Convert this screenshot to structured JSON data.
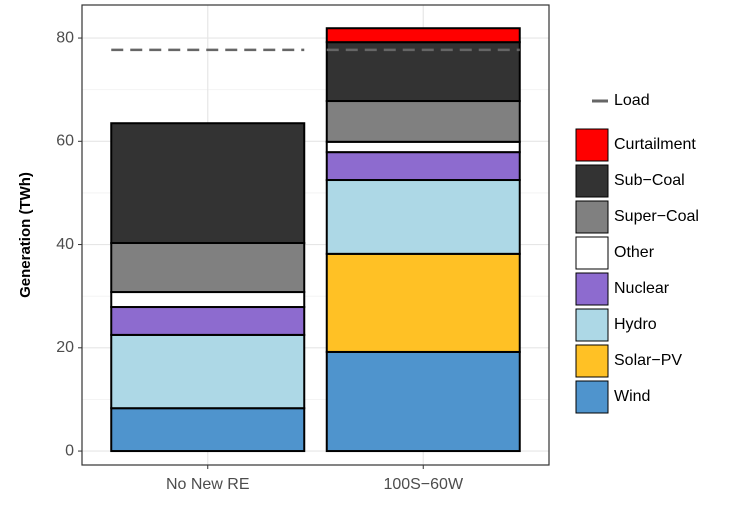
{
  "chart_data": {
    "type": "stacked-bar",
    "ylabel": "Generation (TWh)",
    "categories": [
      "No New RE",
      "100S−60W"
    ],
    "series": [
      {
        "name": "Wind",
        "color": "#4f94cd",
        "values": [
          8.3,
          19.2
        ]
      },
      {
        "name": "Solar−PV",
        "color": "#ffc125",
        "values": [
          0,
          19.0
        ]
      },
      {
        "name": "Hydro",
        "color": "#add8e6",
        "values": [
          14.2,
          14.3
        ]
      },
      {
        "name": "Nuclear",
        "color": "#8d6bcf",
        "values": [
          5.4,
          5.4
        ]
      },
      {
        "name": "Other",
        "color": "#ffffff",
        "values": [
          2.9,
          2.0
        ]
      },
      {
        "name": "Super−Coal",
        "color": "#808080",
        "values": [
          9.5,
          7.9
        ]
      },
      {
        "name": "Sub−Coal",
        "color": "#333333",
        "values": [
          23.2,
          11.4
        ]
      },
      {
        "name": "Curtailment",
        "color": "#ff0000",
        "values": [
          0,
          2.7
        ]
      }
    ],
    "load": {
      "name": "Load",
      "color": "#666666",
      "values": [
        77.7,
        77.7
      ]
    },
    "ylim": [
      -2.7,
      86.4
    ],
    "yticks": [
      0,
      20,
      40,
      60,
      80
    ],
    "yminor": [
      10,
      30,
      50,
      70
    ],
    "grid": true
  }
}
